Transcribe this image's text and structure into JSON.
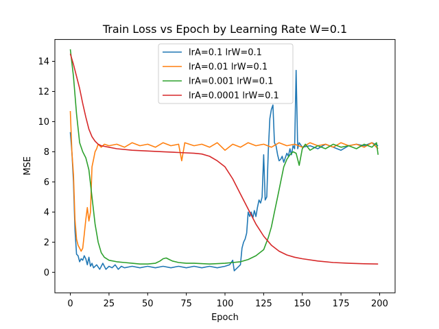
{
  "chart_data": {
    "type": "line",
    "title": "Train Loss vs Epoch by Learning Rate W=0.1",
    "xlabel": "Epoch",
    "ylabel": "MSE",
    "xlim": [
      -10,
      210
    ],
    "ylim": [
      -1.36,
      15.45
    ],
    "x_ticks": [
      0,
      25,
      50,
      75,
      100,
      125,
      150,
      175,
      200
    ],
    "y_ticks": [
      0,
      2,
      4,
      6,
      8,
      10,
      12,
      14
    ],
    "grid": false,
    "legend_position": "top-center",
    "series": [
      {
        "name": "lrA=0.1 lrW=0.1",
        "color": "#1f77b4",
        "points": [
          [
            0,
            9.3
          ],
          [
            1,
            8.0
          ],
          [
            2,
            6.0
          ],
          [
            3,
            2.8
          ],
          [
            4,
            1.2
          ],
          [
            5,
            1.1
          ],
          [
            6,
            0.7
          ],
          [
            7,
            0.9
          ],
          [
            8,
            0.8
          ],
          [
            9,
            1.1
          ],
          [
            10,
            0.9
          ],
          [
            11,
            0.5
          ],
          [
            12,
            1.0
          ],
          [
            13,
            0.4
          ],
          [
            14,
            0.6
          ],
          [
            15,
            0.3
          ],
          [
            17,
            0.5
          ],
          [
            19,
            0.2
          ],
          [
            21,
            0.6
          ],
          [
            23,
            0.2
          ],
          [
            25,
            0.4
          ],
          [
            27,
            0.3
          ],
          [
            29,
            0.5
          ],
          [
            31,
            0.2
          ],
          [
            33,
            0.4
          ],
          [
            35,
            0.3
          ],
          [
            40,
            0.4
          ],
          [
            45,
            0.3
          ],
          [
            50,
            0.4
          ],
          [
            55,
            0.3
          ],
          [
            60,
            0.4
          ],
          [
            65,
            0.3
          ],
          [
            70,
            0.4
          ],
          [
            75,
            0.3
          ],
          [
            80,
            0.4
          ],
          [
            85,
            0.3
          ],
          [
            90,
            0.4
          ],
          [
            95,
            0.3
          ],
          [
            100,
            0.4
          ],
          [
            103,
            0.5
          ],
          [
            105,
            0.8
          ],
          [
            106,
            0.1
          ],
          [
            108,
            0.3
          ],
          [
            110,
            0.5
          ],
          [
            111,
            1.6
          ],
          [
            112,
            2.0
          ],
          [
            113,
            2.2
          ],
          [
            114,
            2.6
          ],
          [
            115,
            4.0
          ],
          [
            116,
            3.7
          ],
          [
            117,
            4.0
          ],
          [
            118,
            3.6
          ],
          [
            119,
            4.1
          ],
          [
            120,
            3.7
          ],
          [
            121,
            4.3
          ],
          [
            122,
            4.8
          ],
          [
            123,
            4.6
          ],
          [
            124,
            5.0
          ],
          [
            125,
            7.8
          ],
          [
            126,
            4.8
          ],
          [
            127,
            5.0
          ],
          [
            128,
            8.0
          ],
          [
            129,
            10.2
          ],
          [
            130,
            10.8
          ],
          [
            131,
            11.1
          ],
          [
            132,
            8.6
          ],
          [
            133,
            8.4
          ],
          [
            134,
            7.8
          ],
          [
            135,
            7.4
          ],
          [
            136,
            7.5
          ],
          [
            137,
            7.7
          ],
          [
            138,
            7.3
          ],
          [
            139,
            7.6
          ],
          [
            140,
            7.9
          ],
          [
            141,
            7.7
          ],
          [
            142,
            8.2
          ],
          [
            143,
            7.8
          ],
          [
            144,
            8.4
          ],
          [
            145,
            8.2
          ],
          [
            146,
            13.4
          ],
          [
            147,
            8.2
          ],
          [
            148,
            8.6
          ],
          [
            150,
            8.3
          ],
          [
            155,
            8.4
          ],
          [
            160,
            8.2
          ],
          [
            165,
            8.5
          ],
          [
            170,
            8.3
          ],
          [
            175,
            8.1
          ],
          [
            180,
            8.4
          ],
          [
            185,
            8.5
          ],
          [
            190,
            8.4
          ],
          [
            195,
            8.6
          ],
          [
            199,
            8.4
          ]
        ]
      },
      {
        "name": "lrA=0.01 lrW=0.1",
        "color": "#ff7f0e",
        "points": [
          [
            0,
            10.7
          ],
          [
            1,
            8.0
          ],
          [
            2,
            6.5
          ],
          [
            3,
            3.5
          ],
          [
            4,
            2.2
          ],
          [
            5,
            1.8
          ],
          [
            6,
            1.6
          ],
          [
            7,
            1.4
          ],
          [
            8,
            1.6
          ],
          [
            9,
            2.5
          ],
          [
            10,
            3.5
          ],
          [
            11,
            4.3
          ],
          [
            12,
            3.4
          ],
          [
            13,
            4.0
          ],
          [
            14,
            7.0
          ],
          [
            15,
            7.5
          ],
          [
            16,
            8.0
          ],
          [
            17,
            8.2
          ],
          [
            18,
            8.5
          ],
          [
            20,
            8.3
          ],
          [
            22,
            8.5
          ],
          [
            25,
            8.4
          ],
          [
            30,
            8.5
          ],
          [
            35,
            8.3
          ],
          [
            40,
            8.6
          ],
          [
            45,
            8.4
          ],
          [
            50,
            8.5
          ],
          [
            55,
            8.3
          ],
          [
            60,
            8.6
          ],
          [
            65,
            8.4
          ],
          [
            70,
            8.5
          ],
          [
            72,
            7.4
          ],
          [
            74,
            8.6
          ],
          [
            80,
            8.4
          ],
          [
            85,
            8.5
          ],
          [
            90,
            8.3
          ],
          [
            95,
            8.6
          ],
          [
            100,
            8.1
          ],
          [
            105,
            8.5
          ],
          [
            110,
            8.3
          ],
          [
            115,
            8.6
          ],
          [
            120,
            8.4
          ],
          [
            125,
            8.5
          ],
          [
            130,
            8.3
          ],
          [
            135,
            8.6
          ],
          [
            140,
            8.4
          ],
          [
            145,
            8.5
          ],
          [
            150,
            8.3
          ],
          [
            155,
            8.6
          ],
          [
            160,
            8.4
          ],
          [
            165,
            8.5
          ],
          [
            170,
            8.3
          ],
          [
            175,
            8.6
          ],
          [
            180,
            8.4
          ],
          [
            185,
            8.5
          ],
          [
            190,
            8.3
          ],
          [
            195,
            8.6
          ],
          [
            199,
            8.2
          ]
        ]
      },
      {
        "name": "lrA=0.001 lrW=0.1",
        "color": "#2ca02c",
        "points": [
          [
            0,
            14.8
          ],
          [
            2,
            13.0
          ],
          [
            4,
            10.5
          ],
          [
            6,
            8.6
          ],
          [
            8,
            8.0
          ],
          [
            10,
            7.6
          ],
          [
            12,
            6.8
          ],
          [
            14,
            5.0
          ],
          [
            16,
            3.2
          ],
          [
            18,
            2.0
          ],
          [
            20,
            1.3
          ],
          [
            22,
            1.0
          ],
          [
            25,
            0.8
          ],
          [
            30,
            0.7
          ],
          [
            35,
            0.65
          ],
          [
            40,
            0.6
          ],
          [
            45,
            0.55
          ],
          [
            50,
            0.55
          ],
          [
            55,
            0.6
          ],
          [
            58,
            0.75
          ],
          [
            60,
            0.9
          ],
          [
            62,
            0.95
          ],
          [
            64,
            0.85
          ],
          [
            66,
            0.75
          ],
          [
            70,
            0.65
          ],
          [
            75,
            0.6
          ],
          [
            80,
            0.6
          ],
          [
            90,
            0.55
          ],
          [
            100,
            0.6
          ],
          [
            105,
            0.65
          ],
          [
            110,
            0.7
          ],
          [
            115,
            0.85
          ],
          [
            120,
            1.1
          ],
          [
            125,
            1.5
          ],
          [
            128,
            2.3
          ],
          [
            130,
            3.0
          ],
          [
            132,
            4.0
          ],
          [
            134,
            5.0
          ],
          [
            136,
            6.0
          ],
          [
            138,
            7.0
          ],
          [
            140,
            7.5
          ],
          [
            142,
            7.8
          ],
          [
            144,
            8.0
          ],
          [
            146,
            7.9
          ],
          [
            148,
            7.1
          ],
          [
            150,
            8.2
          ],
          [
            152,
            8.5
          ],
          [
            155,
            8.1
          ],
          [
            160,
            8.4
          ],
          [
            165,
            8.2
          ],
          [
            170,
            8.5
          ],
          [
            175,
            8.3
          ],
          [
            180,
            8.4
          ],
          [
            185,
            8.2
          ],
          [
            190,
            8.5
          ],
          [
            195,
            8.3
          ],
          [
            198,
            8.6
          ],
          [
            199,
            7.8
          ]
        ]
      },
      {
        "name": "lrA=0.0001 lrW=0.1",
        "color": "#d62728",
        "points": [
          [
            0,
            14.5
          ],
          [
            2,
            13.8
          ],
          [
            4,
            13.0
          ],
          [
            6,
            12.2
          ],
          [
            8,
            11.2
          ],
          [
            10,
            10.3
          ],
          [
            12,
            9.5
          ],
          [
            14,
            9.0
          ],
          [
            16,
            8.7
          ],
          [
            18,
            8.5
          ],
          [
            20,
            8.4
          ],
          [
            25,
            8.3
          ],
          [
            30,
            8.2
          ],
          [
            40,
            8.1
          ],
          [
            50,
            8.05
          ],
          [
            60,
            8.0
          ],
          [
            70,
            7.95
          ],
          [
            80,
            7.9
          ],
          [
            85,
            7.85
          ],
          [
            90,
            7.7
          ],
          [
            95,
            7.4
          ],
          [
            100,
            7.0
          ],
          [
            105,
            6.2
          ],
          [
            110,
            5.2
          ],
          [
            115,
            4.2
          ],
          [
            120,
            3.2
          ],
          [
            125,
            2.4
          ],
          [
            130,
            1.8
          ],
          [
            135,
            1.4
          ],
          [
            140,
            1.15
          ],
          [
            145,
            1.0
          ],
          [
            150,
            0.9
          ],
          [
            160,
            0.75
          ],
          [
            170,
            0.65
          ],
          [
            180,
            0.6
          ],
          [
            190,
            0.57
          ],
          [
            199,
            0.55
          ]
        ]
      }
    ]
  }
}
